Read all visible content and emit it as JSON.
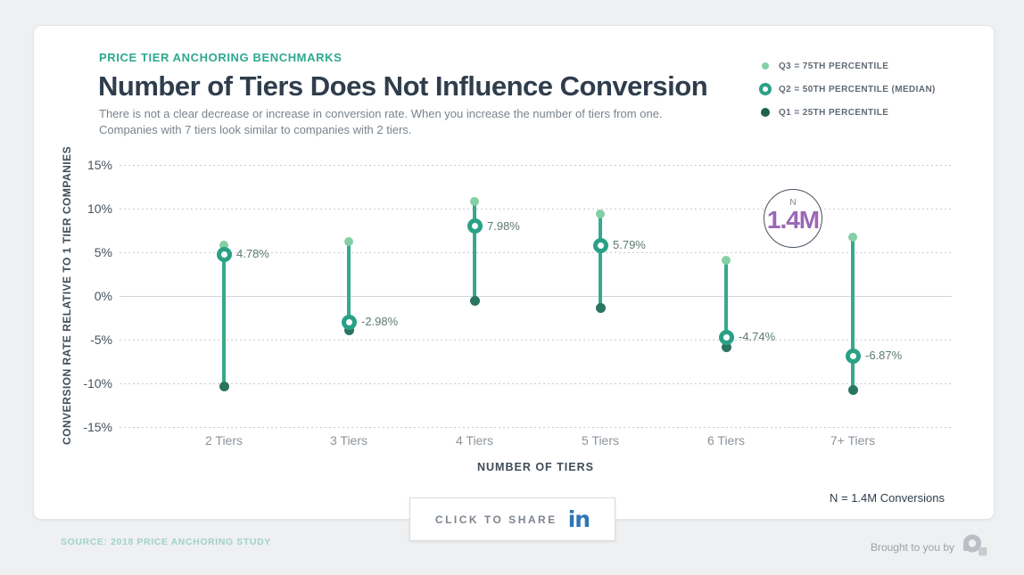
{
  "header": {
    "eyebrow": "PRICE TIER ANCHORING BENCHMARKS",
    "title": "Number of Tiers Does Not Influence Conversion",
    "subtitle_line1": "There is not a clear decrease or increase in conversion rate. When you increase the number of tiers from one.",
    "subtitle_line2": "Companies with 7 tiers look similar to companies with 2 tiers."
  },
  "legend": [
    {
      "label": "Q3 = 75TH PERCENTILE",
      "marker": "dot",
      "color": "#84cfa4"
    },
    {
      "label": "Q2 = 50TH PERCENTILE (MEDIAN)",
      "marker": "ring",
      "color": "#2aa187"
    },
    {
      "label": "Q1 = 25TH PERCENTILE",
      "marker": "dot",
      "color": "#1e6351"
    }
  ],
  "chart_data": {
    "type": "scatter",
    "subtype": "dot-range-lollipop",
    "categories": [
      "2 Tiers",
      "3 Tiers",
      "4 Tiers",
      "5 Tiers",
      "6 Tiers",
      "7+ Tiers"
    ],
    "series": [
      {
        "name": "Q3 = 75th percentile",
        "values": [
          5.8,
          6.2,
          10.8,
          9.4,
          4.1,
          6.7
        ]
      },
      {
        "name": "Q2 = 50th percentile (median)",
        "values": [
          4.78,
          -2.98,
          7.98,
          5.79,
          -4.74,
          -6.87
        ]
      },
      {
        "name": "Q1 = 25th percentile",
        "values": [
          -10.4,
          -3.9,
          -0.6,
          -1.4,
          -5.9,
          -10.8
        ]
      }
    ],
    "q2_labels": [
      "4.78%",
      "-2.98%",
      "7.98%",
      "5.79%",
      "-4.74%",
      "-6.87%"
    ],
    "yticks": [
      "15%",
      "10%",
      "5%",
      "0%",
      "-5%",
      "-10%",
      "-15%"
    ],
    "ytick_values": [
      15,
      10,
      5,
      0,
      -5,
      -10,
      -15
    ],
    "ylim": [
      -17,
      17
    ],
    "grid": "horizontal-dashed, zero-line-solid",
    "xlabel": "NUMBER OF TIERS",
    "ylabel": "CONVERSION RATE RELATIVE TO 1 TIER COMPANIES",
    "legend_position": "top-right"
  },
  "badge": {
    "top": "N",
    "value": "1.4M"
  },
  "note": "N = 1.4M Conversions",
  "share": {
    "label": "CLICK TO SHARE",
    "icon_label": "in"
  },
  "footer": {
    "source": "SOURCE: 2018 PRICE ANCHORING STUDY",
    "brought_by": "Brought to you by"
  },
  "colors": {
    "accent_teal": "#2ea98f",
    "stem": "#38a88d",
    "q3_dot": "#84cfa4",
    "q2_ring": "#2aa187",
    "q1_dot": "#2a7560",
    "title_text": "#2f3d4c",
    "badge_value": "#9a68b5",
    "linkedin_blue": "#2d76b4",
    "page_bg": "#eff0f1"
  }
}
